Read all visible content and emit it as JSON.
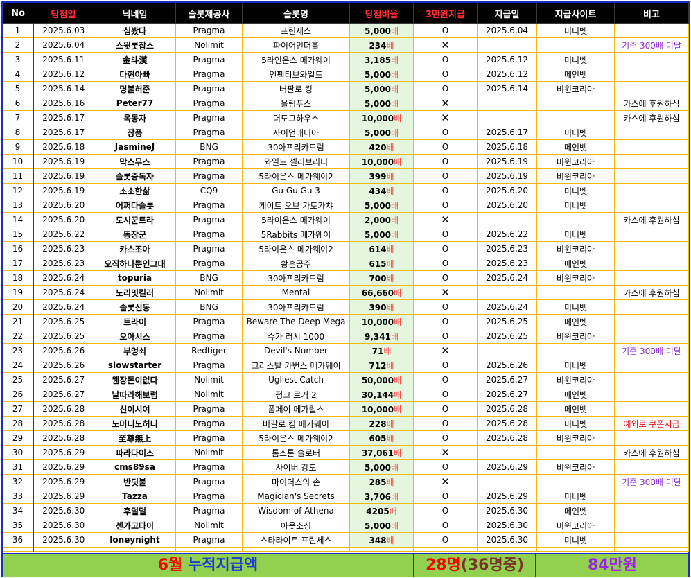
{
  "headers": [
    "No",
    "당첨일",
    "닉네임",
    "슬롯제공사",
    "슬롯명",
    "당첨비율",
    "3만원지급",
    "지급일",
    "지급사이트",
    "비고"
  ],
  "rows": [
    {
      "no": "1",
      "date": "2025.6.03",
      "nick": "심봤다",
      "provider": "Pragma",
      "slot": "프린세스",
      "rate": "5,000",
      "paid": "O",
      "pay_date": "2025.6.04",
      "site": "미니벳",
      "note": ""
    },
    {
      "no": "2",
      "date": "2025.6.04",
      "nick": "스윗롯잡스",
      "provider": "Nolimit",
      "slot": "파이어인더홀",
      "rate": "234",
      "paid": "✕",
      "pay_date": "",
      "site": "",
      "note": "기준 300배 미달"
    },
    {
      "no": "3",
      "date": "2025.6.11",
      "nick": "金斗漢",
      "provider": "Pragma",
      "slot": "5라인온스 메가웨이",
      "rate": "3,185",
      "paid": "O",
      "pay_date": "2025.6.12",
      "site": "미니벳",
      "note": ""
    },
    {
      "no": "4",
      "date": "2025.6.12",
      "nick": "다현아빠",
      "provider": "Pragma",
      "slot": "인펙티브와일드",
      "rate": "5,000",
      "paid": "O",
      "pay_date": "2025.6.12",
      "site": "메인벳",
      "note": ""
    },
    {
      "no": "5",
      "date": "2025.6.14",
      "nick": "명불허준",
      "provider": "Pragma",
      "slot": "버팔로 킹",
      "rate": "5,000",
      "paid": "O",
      "pay_date": "2025.6.14",
      "site": "비윈코리아",
      "note": ""
    },
    {
      "no": "6",
      "date": "2025.6.16",
      "nick": "Peter77",
      "provider": "Pragma",
      "slot": "올림푸스",
      "rate": "5,000",
      "paid": "✕",
      "pay_date": "",
      "site": "",
      "note": "카스에 후원하심"
    },
    {
      "no": "7",
      "date": "2025.6.17",
      "nick": "옥동자",
      "provider": "Pragma",
      "slot": "더도그하우스",
      "rate": "10,000",
      "paid": "✕",
      "pay_date": "",
      "site": "",
      "note": "카스에 후원하심"
    },
    {
      "no": "8",
      "date": "2025.6.17",
      "nick": "장풍",
      "provider": "Pragma",
      "slot": "사이언매니아",
      "rate": "5,000",
      "paid": "O",
      "pay_date": "2025.6.17",
      "site": "미니벳",
      "note": ""
    },
    {
      "no": "9",
      "date": "2025.6.18",
      "nick": "JasmineJ",
      "provider": "BNG",
      "slot": "30아프리카드럼",
      "rate": "420",
      "paid": "O",
      "pay_date": "2025.6.18",
      "site": "메인벳",
      "note": ""
    },
    {
      "no": "10",
      "date": "2025.6.19",
      "nick": "막스무스",
      "provider": "Pragma",
      "slot": "와일드 셀러브리티",
      "rate": "10,000",
      "paid": "O",
      "pay_date": "2025.6.19",
      "site": "비윈코리아",
      "note": ""
    },
    {
      "no": "11",
      "date": "2025.6.19",
      "nick": "슬롯중독자",
      "provider": "Pragma",
      "slot": "5라이온스 메가웨이2",
      "rate": "399",
      "paid": "O",
      "pay_date": "2025.6.19",
      "site": "비윈코리아",
      "note": ""
    },
    {
      "no": "12",
      "date": "2025.6.19",
      "nick": "소소한삶",
      "provider": "CQ9",
      "slot": "Gu Gu Gu 3",
      "rate": "434",
      "paid": "O",
      "pay_date": "2025.6.20",
      "site": "미니벳",
      "note": ""
    },
    {
      "no": "13",
      "date": "2025.6.20",
      "nick": "어쩌다슬롯",
      "provider": "Pragma",
      "slot": "게이트 오브 가토가챠",
      "rate": "5,000",
      "paid": "O",
      "pay_date": "2025.6.20",
      "site": "미니벳",
      "note": ""
    },
    {
      "no": "14",
      "date": "2025.6.20",
      "nick": "도시꾼트라",
      "provider": "Pragma",
      "slot": "5라이온스 메가웨이",
      "rate": "2,000",
      "paid": "✕",
      "pay_date": "",
      "site": "",
      "note": "카스에 후원하심"
    },
    {
      "no": "15",
      "date": "2025.6.22",
      "nick": "똥장군",
      "provider": "Pragma",
      "slot": "5Rabbits 메가웨이",
      "rate": "5,000",
      "paid": "O",
      "pay_date": "2025.6.22",
      "site": "미니벳",
      "note": ""
    },
    {
      "no": "16",
      "date": "2025.6.23",
      "nick": "카스조아",
      "provider": "Pragma",
      "slot": "5라이온스 메가웨이2",
      "rate": "614",
      "paid": "O",
      "pay_date": "2025.6.23",
      "site": "비윈코리아",
      "note": ""
    },
    {
      "no": "17",
      "date": "2025.6.23",
      "nick": "오직하나뿐인그대",
      "provider": "Pragma",
      "slot": "황혼공주",
      "rate": "615",
      "paid": "O",
      "pay_date": "2025.6.23",
      "site": "메인벳",
      "note": ""
    },
    {
      "no": "18",
      "date": "2025.6.24",
      "nick": "topuria",
      "provider": "BNG",
      "slot": "30아프리카드럼",
      "rate": "700",
      "paid": "O",
      "pay_date": "2025.6.24",
      "site": "비윈코리아",
      "note": ""
    },
    {
      "no": "19",
      "date": "2025.6.24",
      "nick": "노리밋킬러",
      "provider": "Nolimit",
      "slot": "Mental",
      "rate": "66,660",
      "paid": "✕",
      "pay_date": "",
      "site": "",
      "note": "카스에 후원하심"
    },
    {
      "no": "20",
      "date": "2025.6.24",
      "nick": "슬롯신동",
      "provider": "BNG",
      "slot": "30아프리카드럼",
      "rate": "390",
      "paid": "O",
      "pay_date": "2025.6.24",
      "site": "미니벳",
      "note": ""
    },
    {
      "no": "21",
      "date": "2025.6.25",
      "nick": "트라이",
      "provider": "Pragma",
      "slot": "Beware The Deep Mega",
      "rate": "10,000",
      "paid": "O",
      "pay_date": "2025.6.25",
      "site": "메인벳",
      "note": ""
    },
    {
      "no": "22",
      "date": "2025.6.25",
      "nick": "오아시스",
      "provider": "Pragma",
      "slot": "슈가 러시 1000",
      "rate": "9,341",
      "paid": "O",
      "pay_date": "2025.6.25",
      "site": "비윈코리아",
      "note": ""
    },
    {
      "no": "23",
      "date": "2025.6.26",
      "nick": "부엉쇠",
      "provider": "Redtiger",
      "slot": "Devil's Number",
      "rate": "71",
      "paid": "✕",
      "pay_date": "",
      "site": "",
      "note": "기준 300배 미달"
    },
    {
      "no": "24",
      "date": "2025.6.26",
      "nick": "slowstarter",
      "provider": "Pragma",
      "slot": "크리스탈 카번스 메가웨이",
      "rate": "712",
      "paid": "O",
      "pay_date": "2025.6.26",
      "site": "미니벳",
      "note": ""
    },
    {
      "no": "25",
      "date": "2025.6.27",
      "nick": "웬장돈이없다",
      "provider": "Nolimit",
      "slot": "Ugliest Catch",
      "rate": "50,000",
      "paid": "O",
      "pay_date": "2025.6.27",
      "site": "비윈코리아",
      "note": ""
    },
    {
      "no": "26",
      "date": "2025.6.27",
      "nick": "날따라해보렴",
      "provider": "Nolimit",
      "slot": "펑크 로커 2",
      "rate": "30,144",
      "paid": "O",
      "pay_date": "2025.6.27",
      "site": "메인벳",
      "note": ""
    },
    {
      "no": "27",
      "date": "2025.6.28",
      "nick": "신이시여",
      "provider": "Pragma",
      "slot": "폼페이 메가릴스",
      "rate": "10,000",
      "paid": "O",
      "pay_date": "2025.6.28",
      "site": "메인벳",
      "note": ""
    },
    {
      "no": "28",
      "date": "2025.6.28",
      "nick": "노머니노허니",
      "provider": "Pragma",
      "slot": "버팔로 킹 메가웨이",
      "rate": "228",
      "paid": "O",
      "pay_date": "2025.6.28",
      "site": "미니벳",
      "note": "예외로 쿠폰지급"
    },
    {
      "no": "29",
      "date": "2025.6.28",
      "nick": "至尊無上",
      "provider": "Pragma",
      "slot": "5라이온스 메가웨이2",
      "rate": "605",
      "paid": "O",
      "pay_date": "2025.6.28",
      "site": "비윈코리아",
      "note": ""
    },
    {
      "no": "30",
      "date": "2025.6.29",
      "nick": "파라다이스",
      "provider": "Nolimit",
      "slot": "톰스톤 슬로터",
      "rate": "37,061",
      "paid": "✕",
      "pay_date": "",
      "site": "",
      "note": "카스에 후원하심"
    },
    {
      "no": "31",
      "date": "2025.6.29",
      "nick": "cms89sa",
      "provider": "Pragma",
      "slot": "사이버 강도",
      "rate": "5,000",
      "paid": "O",
      "pay_date": "2025.6.29",
      "site": "비윈코리아",
      "note": ""
    },
    {
      "no": "32",
      "date": "2025.6.29",
      "nick": "반딧불",
      "provider": "Pragma",
      "slot": "마이더스의 손",
      "rate": "285",
      "paid": "✕",
      "pay_date": "",
      "site": "",
      "note": "기준 300배 미달"
    },
    {
      "no": "33",
      "date": "2025.6.29",
      "nick": "Tazza",
      "provider": "Pragma",
      "slot": "Magician's Secrets",
      "rate": "3,706",
      "paid": "O",
      "pay_date": "2025.6.29",
      "site": "미니벳",
      "note": ""
    },
    {
      "no": "34",
      "date": "2025.6.30",
      "nick": "후덜덜",
      "provider": "Pragma",
      "slot": "Wisdom of Athena",
      "rate": "4205",
      "paid": "O",
      "pay_date": "2025.6.30",
      "site": "메인벳",
      "note": ""
    },
    {
      "no": "35",
      "date": "2025.6.30",
      "nick": "센가고다이",
      "provider": "Nolimit",
      "slot": "아웃소싱",
      "rate": "5,000",
      "paid": "O",
      "pay_date": "2025.6.30",
      "site": "비윈코리아",
      "note": ""
    },
    {
      "no": "36",
      "date": "2025.6.30",
      "nick": "loneynight",
      "provider": "Pragma",
      "slot": "스타라이트 프린세스",
      "rate": "348",
      "paid": "O",
      "pay_date": "2025.6.30",
      "site": "미니벳",
      "note": ""
    }
  ],
  "rate_unit": "배",
  "summary": {
    "month": "6월",
    "label": "누적지급액",
    "count": "28명",
    "of_total": "(36명중)",
    "amount": "84만원"
  },
  "colors": {
    "border_blue": "#1a2ecb",
    "grid_orange": "#f0b800",
    "header_bg": "#000000",
    "summary_bg": "#92d050",
    "rate_bg": "#e5f6df"
  }
}
